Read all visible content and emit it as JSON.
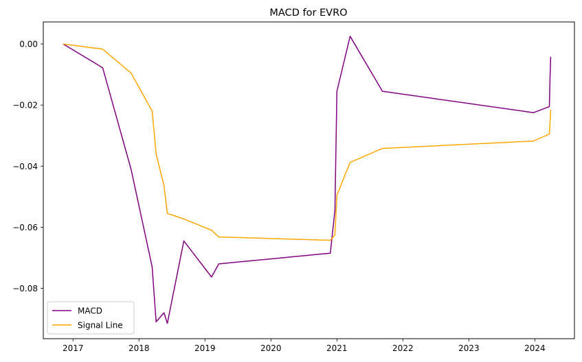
{
  "chart_data": {
    "type": "line",
    "title": "MACD for EVRO",
    "xlabel": "",
    "ylabel": "",
    "xlim": [
      2016.55,
      2024.6
    ],
    "ylim": [
      -0.0965,
      0.0072
    ],
    "x_ticks": [
      2017,
      2018,
      2019,
      2020,
      2021,
      2022,
      2023,
      2024
    ],
    "x_tick_labels": [
      "2017",
      "2018",
      "2019",
      "2020",
      "2021",
      "2022",
      "2023",
      "2024"
    ],
    "y_ticks": [
      0.0,
      -0.02,
      -0.04,
      -0.06,
      -0.08
    ],
    "y_tick_labels": [
      "0.00",
      "−0.02",
      "−0.04",
      "−0.06",
      "−0.08"
    ],
    "grid": false,
    "legend_position": "lower-left",
    "series": [
      {
        "name": "MACD",
        "color": "#800080",
        "x": [
          2016.85,
          2017.45,
          2017.88,
          2018.2,
          2018.26,
          2018.38,
          2018.43,
          2018.68,
          2019.1,
          2019.21,
          2020.9,
          2020.97,
          2021.0,
          2021.2,
          2021.69,
          2023.98,
          2024.22,
          2024.23,
          2024.24
        ],
        "y": [
          0.0,
          -0.0078,
          -0.041,
          -0.073,
          -0.091,
          -0.088,
          -0.0915,
          -0.0645,
          -0.0763,
          -0.072,
          -0.0685,
          -0.0545,
          -0.0155,
          0.0025,
          -0.0155,
          -0.0225,
          -0.0205,
          -0.011,
          -0.0042
        ]
      },
      {
        "name": "Signal Line",
        "color": "#ffa500",
        "x": [
          2016.85,
          2017.45,
          2017.88,
          2018.2,
          2018.26,
          2018.38,
          2018.43,
          2018.68,
          2019.1,
          2019.21,
          2020.9,
          2020.97,
          2021.0,
          2021.2,
          2021.69,
          2023.98,
          2024.22,
          2024.24
        ],
        "y": [
          0.0,
          -0.0017,
          -0.0095,
          -0.022,
          -0.036,
          -0.0465,
          -0.0555,
          -0.0573,
          -0.061,
          -0.0632,
          -0.0643,
          -0.0625,
          -0.0495,
          -0.0388,
          -0.0342,
          -0.0318,
          -0.0295,
          -0.0215
        ]
      }
    ]
  }
}
